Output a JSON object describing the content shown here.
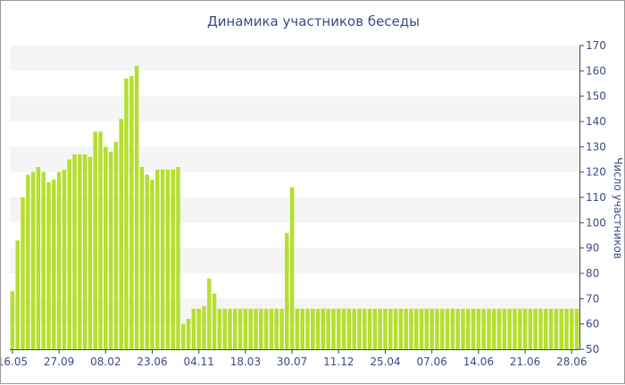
{
  "chart_data": {
    "type": "bar",
    "title": "Динамика участников беседы",
    "xlabel": "",
    "ylabel": "Число участников",
    "ylim": [
      50,
      170
    ],
    "yticks": [
      50,
      60,
      70,
      80,
      90,
      100,
      110,
      120,
      130,
      140,
      150,
      160,
      170
    ],
    "x_tick_labels": [
      "16.05",
      "27.09",
      "08.02",
      "23.06",
      "04.11",
      "18.03",
      "30.07",
      "11.12",
      "25.04",
      "07.06",
      "14.06",
      "21.06",
      "28.06"
    ],
    "x_tick_positions": [
      0,
      9,
      18,
      27,
      36,
      45,
      54,
      63,
      72,
      81,
      90,
      99,
      108
    ],
    "grid": true,
    "legend": "none",
    "bar_color": "#b5df2f",
    "values": [
      73,
      93,
      110,
      119,
      120,
      122,
      120,
      116,
      117,
      120,
      121,
      125,
      127,
      127,
      127,
      126,
      136,
      136,
      130,
      128,
      132,
      141,
      157,
      158,
      162,
      122,
      119,
      117,
      121,
      121,
      121,
      121,
      122,
      60,
      62,
      66,
      66,
      67,
      78,
      72,
      66,
      66,
      66,
      66,
      66,
      66,
      66,
      66,
      66,
      66,
      66,
      66,
      66,
      96,
      114,
      66,
      66,
      66,
      66,
      66,
      66,
      66,
      66,
      66,
      66,
      66,
      66,
      66,
      66,
      66,
      66,
      66,
      66,
      66,
      66,
      66,
      66,
      66,
      66,
      66,
      66,
      66,
      66,
      66,
      66,
      66,
      66,
      66,
      66,
      66,
      66,
      66,
      66,
      66,
      66,
      66,
      66,
      66,
      66,
      66,
      66,
      66,
      66,
      66,
      66,
      66,
      66,
      66,
      66,
      66
    ]
  }
}
